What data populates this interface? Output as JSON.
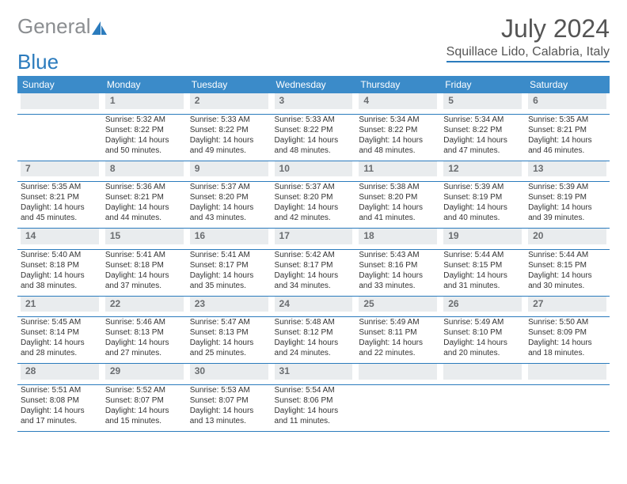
{
  "logo": {
    "text1": "General",
    "text2": "Blue"
  },
  "header": {
    "title": "July 2024",
    "location": "Squillace Lido, Calabria, Italy"
  },
  "colors": {
    "header_bg": "#3b8bc9",
    "header_text": "#ffffff",
    "daynum_bg": "#e9ecee",
    "daynum_text": "#6a6d70",
    "rule": "#2b7bbd",
    "accent": "#2b7bbd"
  },
  "daysOfWeek": [
    "Sunday",
    "Monday",
    "Tuesday",
    "Wednesday",
    "Thursday",
    "Friday",
    "Saturday"
  ],
  "weeks": [
    [
      {
        "n": "",
        "sr": "",
        "ss": "",
        "dl": ""
      },
      {
        "n": "1",
        "sr": "Sunrise: 5:32 AM",
        "ss": "Sunset: 8:22 PM",
        "dl": "Daylight: 14 hours and 50 minutes."
      },
      {
        "n": "2",
        "sr": "Sunrise: 5:33 AM",
        "ss": "Sunset: 8:22 PM",
        "dl": "Daylight: 14 hours and 49 minutes."
      },
      {
        "n": "3",
        "sr": "Sunrise: 5:33 AM",
        "ss": "Sunset: 8:22 PM",
        "dl": "Daylight: 14 hours and 48 minutes."
      },
      {
        "n": "4",
        "sr": "Sunrise: 5:34 AM",
        "ss": "Sunset: 8:22 PM",
        "dl": "Daylight: 14 hours and 48 minutes."
      },
      {
        "n": "5",
        "sr": "Sunrise: 5:34 AM",
        "ss": "Sunset: 8:22 PM",
        "dl": "Daylight: 14 hours and 47 minutes."
      },
      {
        "n": "6",
        "sr": "Sunrise: 5:35 AM",
        "ss": "Sunset: 8:21 PM",
        "dl": "Daylight: 14 hours and 46 minutes."
      }
    ],
    [
      {
        "n": "7",
        "sr": "Sunrise: 5:35 AM",
        "ss": "Sunset: 8:21 PM",
        "dl": "Daylight: 14 hours and 45 minutes."
      },
      {
        "n": "8",
        "sr": "Sunrise: 5:36 AM",
        "ss": "Sunset: 8:21 PM",
        "dl": "Daylight: 14 hours and 44 minutes."
      },
      {
        "n": "9",
        "sr": "Sunrise: 5:37 AM",
        "ss": "Sunset: 8:20 PM",
        "dl": "Daylight: 14 hours and 43 minutes."
      },
      {
        "n": "10",
        "sr": "Sunrise: 5:37 AM",
        "ss": "Sunset: 8:20 PM",
        "dl": "Daylight: 14 hours and 42 minutes."
      },
      {
        "n": "11",
        "sr": "Sunrise: 5:38 AM",
        "ss": "Sunset: 8:20 PM",
        "dl": "Daylight: 14 hours and 41 minutes."
      },
      {
        "n": "12",
        "sr": "Sunrise: 5:39 AM",
        "ss": "Sunset: 8:19 PM",
        "dl": "Daylight: 14 hours and 40 minutes."
      },
      {
        "n": "13",
        "sr": "Sunrise: 5:39 AM",
        "ss": "Sunset: 8:19 PM",
        "dl": "Daylight: 14 hours and 39 minutes."
      }
    ],
    [
      {
        "n": "14",
        "sr": "Sunrise: 5:40 AM",
        "ss": "Sunset: 8:18 PM",
        "dl": "Daylight: 14 hours and 38 minutes."
      },
      {
        "n": "15",
        "sr": "Sunrise: 5:41 AM",
        "ss": "Sunset: 8:18 PM",
        "dl": "Daylight: 14 hours and 37 minutes."
      },
      {
        "n": "16",
        "sr": "Sunrise: 5:41 AM",
        "ss": "Sunset: 8:17 PM",
        "dl": "Daylight: 14 hours and 35 minutes."
      },
      {
        "n": "17",
        "sr": "Sunrise: 5:42 AM",
        "ss": "Sunset: 8:17 PM",
        "dl": "Daylight: 14 hours and 34 minutes."
      },
      {
        "n": "18",
        "sr": "Sunrise: 5:43 AM",
        "ss": "Sunset: 8:16 PM",
        "dl": "Daylight: 14 hours and 33 minutes."
      },
      {
        "n": "19",
        "sr": "Sunrise: 5:44 AM",
        "ss": "Sunset: 8:15 PM",
        "dl": "Daylight: 14 hours and 31 minutes."
      },
      {
        "n": "20",
        "sr": "Sunrise: 5:44 AM",
        "ss": "Sunset: 8:15 PM",
        "dl": "Daylight: 14 hours and 30 minutes."
      }
    ],
    [
      {
        "n": "21",
        "sr": "Sunrise: 5:45 AM",
        "ss": "Sunset: 8:14 PM",
        "dl": "Daylight: 14 hours and 28 minutes."
      },
      {
        "n": "22",
        "sr": "Sunrise: 5:46 AM",
        "ss": "Sunset: 8:13 PM",
        "dl": "Daylight: 14 hours and 27 minutes."
      },
      {
        "n": "23",
        "sr": "Sunrise: 5:47 AM",
        "ss": "Sunset: 8:13 PM",
        "dl": "Daylight: 14 hours and 25 minutes."
      },
      {
        "n": "24",
        "sr": "Sunrise: 5:48 AM",
        "ss": "Sunset: 8:12 PM",
        "dl": "Daylight: 14 hours and 24 minutes."
      },
      {
        "n": "25",
        "sr": "Sunrise: 5:49 AM",
        "ss": "Sunset: 8:11 PM",
        "dl": "Daylight: 14 hours and 22 minutes."
      },
      {
        "n": "26",
        "sr": "Sunrise: 5:49 AM",
        "ss": "Sunset: 8:10 PM",
        "dl": "Daylight: 14 hours and 20 minutes."
      },
      {
        "n": "27",
        "sr": "Sunrise: 5:50 AM",
        "ss": "Sunset: 8:09 PM",
        "dl": "Daylight: 14 hours and 18 minutes."
      }
    ],
    [
      {
        "n": "28",
        "sr": "Sunrise: 5:51 AM",
        "ss": "Sunset: 8:08 PM",
        "dl": "Daylight: 14 hours and 17 minutes."
      },
      {
        "n": "29",
        "sr": "Sunrise: 5:52 AM",
        "ss": "Sunset: 8:07 PM",
        "dl": "Daylight: 14 hours and 15 minutes."
      },
      {
        "n": "30",
        "sr": "Sunrise: 5:53 AM",
        "ss": "Sunset: 8:07 PM",
        "dl": "Daylight: 14 hours and 13 minutes."
      },
      {
        "n": "31",
        "sr": "Sunrise: 5:54 AM",
        "ss": "Sunset: 8:06 PM",
        "dl": "Daylight: 14 hours and 11 minutes."
      },
      {
        "n": "",
        "sr": "",
        "ss": "",
        "dl": ""
      },
      {
        "n": "",
        "sr": "",
        "ss": "",
        "dl": ""
      },
      {
        "n": "",
        "sr": "",
        "ss": "",
        "dl": ""
      }
    ]
  ]
}
